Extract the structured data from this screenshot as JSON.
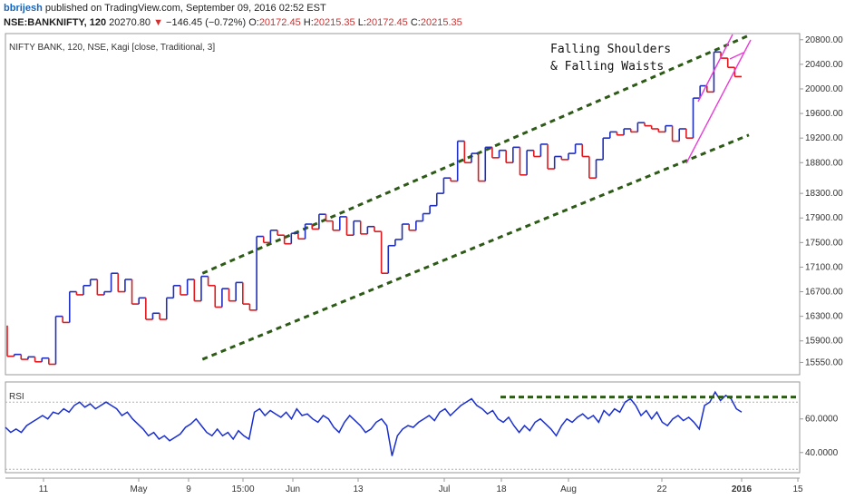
{
  "header": {
    "user": "bbrijesh",
    "published": "published on TradingView.com, September 09, 2016 02:52 EST",
    "symbol": "NSE:BANKNIFTY, 120",
    "last": "20270.80",
    "arrow": "▼",
    "change": "−146.45 (−0.72%)",
    "o_label": "O:",
    "o_val": "20172.45",
    "h_label": "H:",
    "h_val": "20215.35",
    "l_label": "L:",
    "l_val": "20172.45",
    "c_label": "C:",
    "c_val": "20215.35"
  },
  "chart_data": [
    {
      "type": "line",
      "title": "NIFTY BANK, 120, NSE, Kagi [close, Traditional, 3]",
      "annotation_lines": [
        "Falling Shoulders",
        "& Falling Waists"
      ],
      "y_ticks": [
        "20800.00",
        "20400.00",
        "20000.00",
        "19600.00",
        "19200.00",
        "18800.00",
        "18300.00",
        "17900.00",
        "17500.00",
        "17100.00",
        "16700.00",
        "16300.00",
        "15900.00",
        "15550.00"
      ],
      "y_tick_values": [
        20800,
        20400,
        20000,
        19600,
        19200,
        18800,
        18300,
        17900,
        17500,
        17100,
        16700,
        16300,
        15900,
        15550
      ],
      "ylim": [
        15350,
        20900
      ],
      "x_ticks": [
        "11",
        "May",
        "9",
        "15:00",
        "Jun",
        "13",
        "Jul",
        "18",
        "Aug",
        "22",
        "2016",
        "15"
      ],
      "grid": false,
      "kagi_values": [
        16150,
        15650,
        15680,
        15600,
        15640,
        15560,
        15620,
        15520,
        16300,
        16200,
        16700,
        16650,
        16800,
        16900,
        16650,
        16700,
        17000,
        16700,
        16900,
        16500,
        16600,
        16250,
        16350,
        16250,
        16600,
        16800,
        16650,
        16900,
        16550,
        16950,
        16800,
        16450,
        16750,
        16550,
        16850,
        16500,
        16400,
        17600,
        17500,
        17700,
        17620,
        17480,
        17650,
        17560,
        17800,
        17720,
        17960,
        17850,
        17700,
        17920,
        17620,
        17850,
        17640,
        17760,
        17680,
        17000,
        17450,
        17550,
        17800,
        17700,
        17850,
        17970,
        18100,
        18300,
        18550,
        18500,
        19150,
        18800,
        18950,
        18500,
        19050,
        18880,
        19000,
        18800,
        19050,
        18600,
        19000,
        18900,
        19100,
        18700,
        18900,
        18850,
        18950,
        19100,
        18900,
        18550,
        18850,
        19200,
        19300,
        19250,
        19350,
        19300,
        19450,
        19400,
        19350,
        19300,
        19400,
        19150,
        19350,
        19200,
        19850,
        20050,
        19950,
        20600,
        20500,
        20350,
        20200
      ],
      "channel_lines": [
        {
          "name": "upper",
          "from": [
            0.265,
            17000
          ],
          "to": [
            1.0,
            20870
          ]
        },
        {
          "name": "lower",
          "from": [
            0.265,
            15600
          ],
          "to": [
            1.0,
            19250
          ]
        }
      ]
    },
    {
      "type": "line",
      "title": "RSI",
      "y_ticks": [
        "60.0000",
        "40.0000"
      ],
      "y_tick_values": [
        60,
        40
      ],
      "ylim": [
        28,
        82
      ],
      "values": [
        55,
        52,
        54,
        52,
        56,
        58,
        60,
        62,
        60,
        64,
        63,
        66,
        64,
        68,
        70,
        67,
        69,
        66,
        68,
        70,
        68,
        66,
        62,
        64,
        60,
        57,
        54,
        50,
        52,
        48,
        50,
        47,
        49,
        51,
        55,
        57,
        60,
        56,
        52,
        50,
        54,
        50,
        52,
        48,
        53,
        50,
        48,
        64,
        66,
        62,
        65,
        63,
        61,
        64,
        60,
        66,
        62,
        63,
        60,
        58,
        62,
        60,
        55,
        52,
        58,
        62,
        59,
        56,
        52,
        54,
        58,
        60,
        56,
        38,
        50,
        54,
        56,
        55,
        58,
        60,
        62,
        59,
        64,
        66,
        62,
        65,
        68,
        70,
        72,
        68,
        66,
        63,
        65,
        60,
        58,
        61,
        56,
        52,
        56,
        53,
        58,
        60,
        57,
        54,
        50,
        56,
        60,
        58,
        61,
        63,
        60,
        62,
        58,
        65,
        62,
        66,
        64,
        70,
        72,
        68,
        62,
        65,
        60,
        64,
        58,
        56,
        60,
        62,
        59,
        61,
        58,
        54,
        68,
        70,
        76,
        71,
        74,
        72,
        66,
        64
      ],
      "levels": [
        70,
        30
      ]
    }
  ],
  "colors": {
    "up": "#1f2fbf",
    "down": "#e0191e",
    "channel": "#2d5a16",
    "magenta": "#e83cd6",
    "rsi": "#1a2fd0"
  }
}
